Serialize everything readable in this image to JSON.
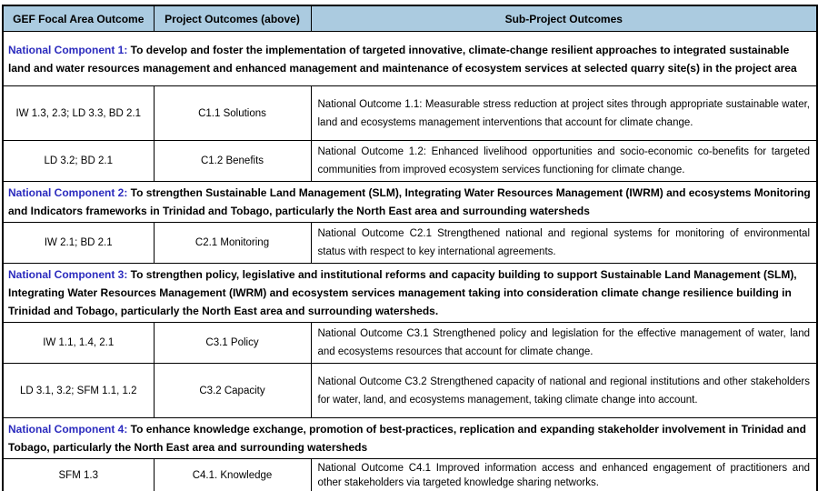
{
  "colors": {
    "header_bg": "#abcbe0",
    "component_title": "#2b2bbe",
    "border": "#000000"
  },
  "table": {
    "headers": [
      "GEF Focal Area Outcome",
      "Project Outcomes (above)",
      "Sub-Project Outcomes"
    ],
    "sections": [
      {
        "title": "National Component 1:",
        "description": " To  develop and foster the implementation of targeted innovative, climate-change resilient approaches to integrated sustainable land and water resources management and enhanced management and maintenance of ecosystem services at selected quarry site(s) in the project area",
        "rows": [
          {
            "focal": "IW 1.3, 2.3; LD 3.3, BD 2.1",
            "project": "C1.1 Solutions",
            "sub": "National Outcome 1.1: Measurable stress reduction at project sites through appropriate sustainable water, land and ecosystems management interventions that account for climate change."
          },
          {
            "focal": "LD 3.2; BD 2.1",
            "project": "C1.2 Benefits",
            "sub": "National Outcome 1.2: Enhanced livelihood opportunities and socio-economic co-benefits for targeted communities from improved ecosystem services functioning for climate change."
          }
        ]
      },
      {
        "title": "National Component 2:",
        "description": " To strengthen Sustainable Land Management (SLM), Integrating Water Resources Management (IWRM) and ecosystems Monitoring and Indicators frameworks in Trinidad and Tobago, particularly the North East area and surrounding watersheds",
        "rows": [
          {
            "focal": "IW 2.1; BD 2.1",
            "project": "C2.1  Monitoring",
            "sub": "National Outcome C2.1 Strengthened national and regional systems for monitoring of environmental status with respect to key international agreements."
          }
        ]
      },
      {
        "title": "National Component 3:",
        "description": " To strengthen policy, legislative and institutional reforms and capacity building to support Sustainable Land Management (SLM), Integrating Water Resources Management (IWRM) and ecosystem services management taking into consideration climate change resilience building in Trinidad and Tobago, particularly the North East area and surrounding watersheds.",
        "rows": [
          {
            "focal": "IW 1.1, 1.4, 2.1",
            "project": "C3.1 Policy",
            "sub": "National Outcome C3.1 Strengthened policy and legislation for the effective management of water, land and ecosystems resources that account for climate change."
          },
          {
            "focal": "LD 3.1, 3.2; SFM 1.1, 1.2",
            "project": "C3.2  Capacity",
            "sub": "National Outcome C3.2 Strengthened capacity of national and regional institutions and other stakeholders for water, land, and ecosystems management, taking climate change into account."
          }
        ]
      },
      {
        "title": "National Component 4:",
        "description": " To enhance knowledge exchange, promotion of best-practices, replication and expanding stakeholder involvement in Trinidad and Tobago, particularly the North East area and surrounding watersheds",
        "rows": [
          {
            "focal": "SFM 1.3",
            "project": "C4.1.  Knowledge",
            "sub": "National Outcome C4.1 Improved information access and enhanced engagement of practitioners and other stakeholders via targeted knowledge sharing networks."
          }
        ]
      }
    ]
  }
}
